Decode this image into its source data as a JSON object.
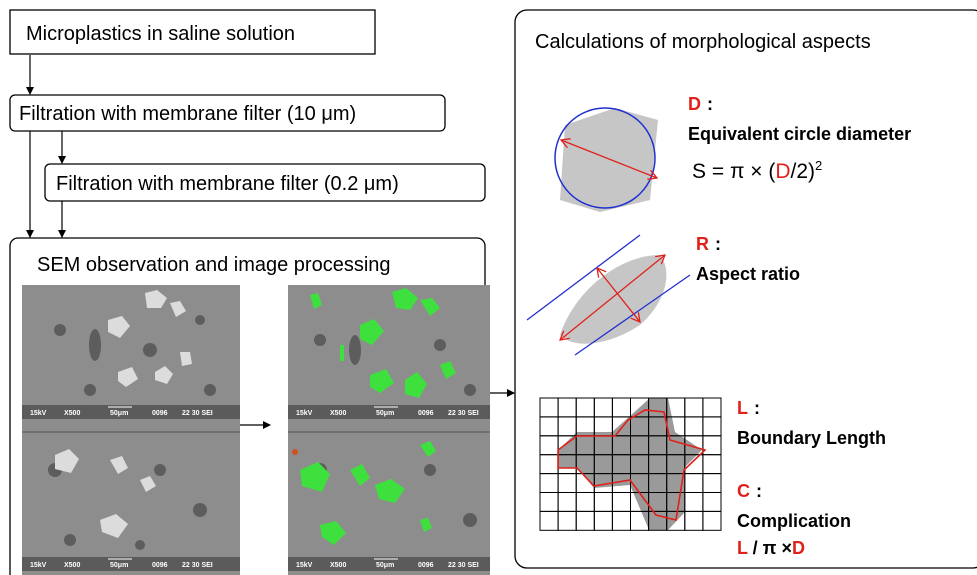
{
  "workflow": {
    "sample": "Microplastics in saline solution",
    "filter_coarse": "Filtration with membrane filter (10 μm)",
    "filter_fine": "Filtration with membrane filter (0.2 μm)",
    "sem": {
      "title": "SEM observation and image processing",
      "caption": [
        "15kV",
        "X500",
        "50μm",
        "0096",
        "22 30 SEI"
      ]
    }
  },
  "calculations": {
    "title": "Calculations of morphological aspects",
    "measures": [
      {
        "symbol": "D",
        "colon": ":",
        "name": "Equivalent circle diameter",
        "formula": [
          "S = π × (",
          "D",
          "/2)",
          "2"
        ]
      },
      {
        "symbol": "R",
        "colon": ":",
        "name": "Aspect ratio"
      },
      {
        "symbol": "L",
        "colon": ":",
        "name": "Boundary Length"
      },
      {
        "symbol": "C",
        "colon": ":",
        "name": "Complication",
        "formula": [
          "L",
          " / π ×",
          "D"
        ]
      }
    ]
  }
}
